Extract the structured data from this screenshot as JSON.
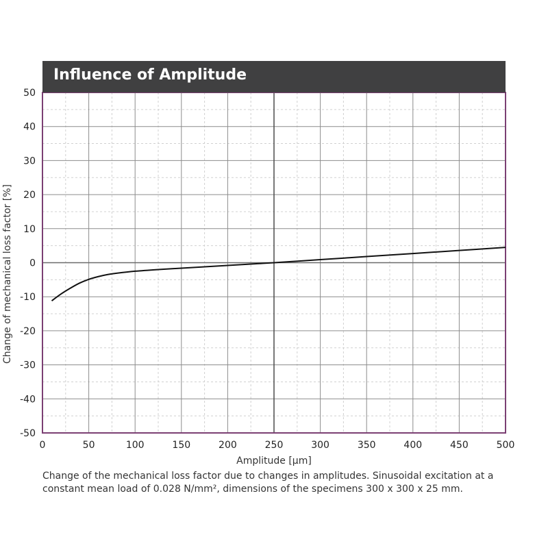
{
  "chart_data": {
    "type": "line",
    "title": "Influence of Amplitude",
    "xlabel": "Amplitude [µm]",
    "ylabel": "Change of mechanical  loss factor [%]",
    "xlim": [
      0,
      500
    ],
    "ylim": [
      -50,
      50
    ],
    "x_ticks": [
      0,
      50,
      100,
      150,
      200,
      250,
      300,
      350,
      400,
      450,
      500
    ],
    "y_ticks": [
      50,
      40,
      30,
      20,
      10,
      0,
      -10,
      -20,
      -30,
      -40,
      -50
    ],
    "grid": true,
    "series": [
      {
        "x": [
          10,
          20,
          30,
          40,
          50,
          60,
          70,
          80,
          100,
          125,
          150,
          175,
          200,
          225,
          250,
          300,
          350,
          400,
          450,
          500
        ],
        "y": [
          -11.2,
          -9.2,
          -7.5,
          -6.0,
          -4.9,
          -4.1,
          -3.5,
          -3.1,
          -2.5,
          -2.0,
          -1.6,
          -1.2,
          -0.8,
          -0.4,
          0.0,
          0.9,
          1.8,
          2.7,
          3.6,
          4.5
        ]
      }
    ]
  },
  "caption": "Change of the mechanical loss factor due to changes in amplitudes. Sinusoidal excitation at a constant mean load of 0.028 N/mm², dimensions of the specimens 300 x 300 x 25 mm.",
  "colors": {
    "title_bar": "#404041",
    "frame": "#7b3f73",
    "curve": "#111111",
    "major_grid": "#8c8c8c",
    "minor_grid": "#d0d0d0"
  }
}
